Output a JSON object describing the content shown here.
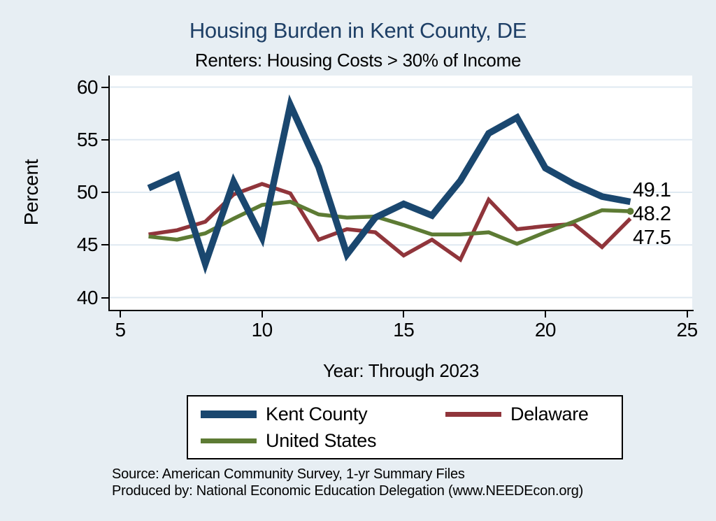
{
  "title": "Housing Burden in Kent County, DE",
  "subtitle": "Renters: Housing Costs > 30% of Income",
  "y_axis": {
    "label": "Percent",
    "ticks": [
      60,
      55,
      50,
      45,
      40
    ]
  },
  "x_axis": {
    "label": "Year: Through 2023",
    "ticks": [
      5,
      10,
      15,
      20,
      25
    ]
  },
  "colors": {
    "background": "#e7eef3",
    "plot_background": "#ffffff",
    "gridline": "#dfe9f1",
    "axis": "#000000",
    "title": "#1e3f66",
    "kent_county": "#1a476f",
    "delaware": "#90353b",
    "united_states": "#5d7b34"
  },
  "source_line1": "Source: American Community Survey, 1-yr Summary Files",
  "source_line2": "Produced by: National Economic Education Delegation (www.NEEDEcon.org)",
  "chart_data": {
    "type": "line",
    "title": "Housing Burden in Kent County, DE",
    "subtitle": "Renters: Housing Costs > 30% of Income",
    "xlabel": "Year: Through 2023",
    "ylabel": "Percent",
    "xlim": [
      5,
      25
    ],
    "ylim": [
      40,
      60
    ],
    "grid": "horizontal",
    "legend_position": "bottom",
    "x": [
      6,
      7,
      8,
      9,
      10,
      11,
      12,
      13,
      14,
      15,
      16,
      17,
      18,
      19,
      20,
      21,
      22,
      23
    ],
    "series": [
      {
        "name": "Kent County",
        "color": "#1a476f",
        "stroke_width": 9.5,
        "end_label": "49.1",
        "end_marker": false,
        "values": [
          50.4,
          51.6,
          43.2,
          51.0,
          45.7,
          58.3,
          52.4,
          44.1,
          47.6,
          48.9,
          47.8,
          51.1,
          55.6,
          57.1,
          52.3,
          50.8,
          49.6,
          49.1
        ]
      },
      {
        "name": "Delaware",
        "color": "#90353b",
        "stroke_width": 5.5,
        "end_label": "47.5",
        "end_marker": false,
        "values": [
          46.0,
          46.4,
          47.2,
          49.8,
          50.8,
          49.9,
          45.5,
          46.5,
          46.2,
          44.0,
          45.5,
          43.6,
          49.3,
          46.5,
          46.8,
          47.0,
          44.8,
          47.5
        ]
      },
      {
        "name": "United States",
        "color": "#5d7b34",
        "stroke_width": 5.5,
        "end_label": "48.2",
        "end_marker": true,
        "values": [
          45.8,
          45.5,
          46.1,
          47.5,
          48.8,
          49.1,
          47.9,
          47.6,
          47.7,
          46.9,
          46.0,
          46.0,
          46.2,
          45.1,
          46.2,
          47.2,
          48.3,
          48.2
        ]
      }
    ]
  }
}
